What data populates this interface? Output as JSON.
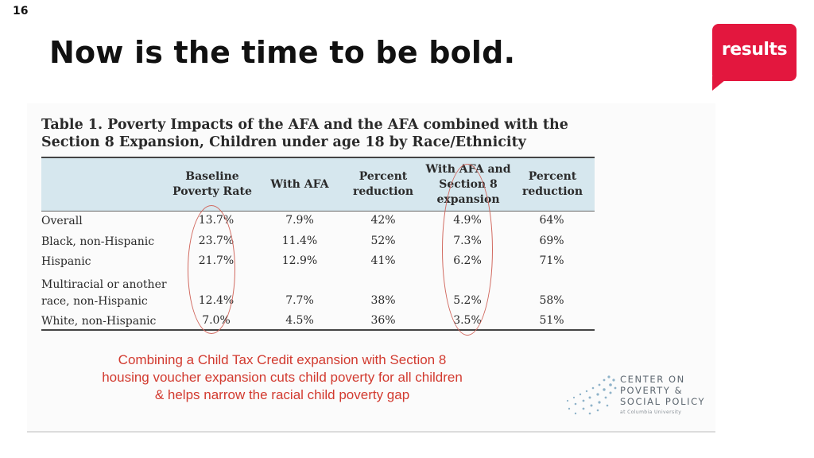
{
  "slide": {
    "number": "16",
    "title": "Now is the time to be bold."
  },
  "logo": {
    "text": "results",
    "color": "#e3173e"
  },
  "table": {
    "caption_line1": "Table 1. Poverty Impacts of the AFA and the AFA combined with the",
    "caption_line2": "Section 8 Expansion, Children under age 18 by Race/Ethnicity",
    "headers": [
      "Baseline Poverty Rate",
      "With AFA",
      "Percent reduction",
      "With AFA and Section 8 expansion",
      "Percent reduction"
    ],
    "rows": [
      {
        "label": "Overall",
        "cells": [
          "13.7%",
          "7.9%",
          "42%",
          "4.9%",
          "64%"
        ]
      },
      {
        "label": "Black, non-Hispanic",
        "cells": [
          "23.7%",
          "11.4%",
          "52%",
          "7.3%",
          "69%"
        ]
      },
      {
        "label": "Hispanic",
        "cells": [
          "21.7%",
          "12.9%",
          "41%",
          "6.2%",
          "71%"
        ]
      },
      {
        "label": "Multiracial or another race, non-Hispanic",
        "cells": [
          "12.4%",
          "7.7%",
          "38%",
          "5.2%",
          "58%"
        ]
      },
      {
        "label": "White, non-Hispanic",
        "cells": [
          "7.0%",
          "4.5%",
          "36%",
          "3.5%",
          "51%"
        ]
      }
    ]
  },
  "callout": {
    "line1": "Combining a Child Tax Credit expansion with Section 8",
    "line2": "housing voucher expansion cuts child poverty for all children",
    "line3": "& helps narrow the racial child poverty gap",
    "color": "#d23a2f"
  },
  "source_logo": {
    "line1": "CENTER ON",
    "line2": "POVERTY &",
    "line3": "SOCIAL POLICY",
    "line4": "at Columbia University"
  }
}
